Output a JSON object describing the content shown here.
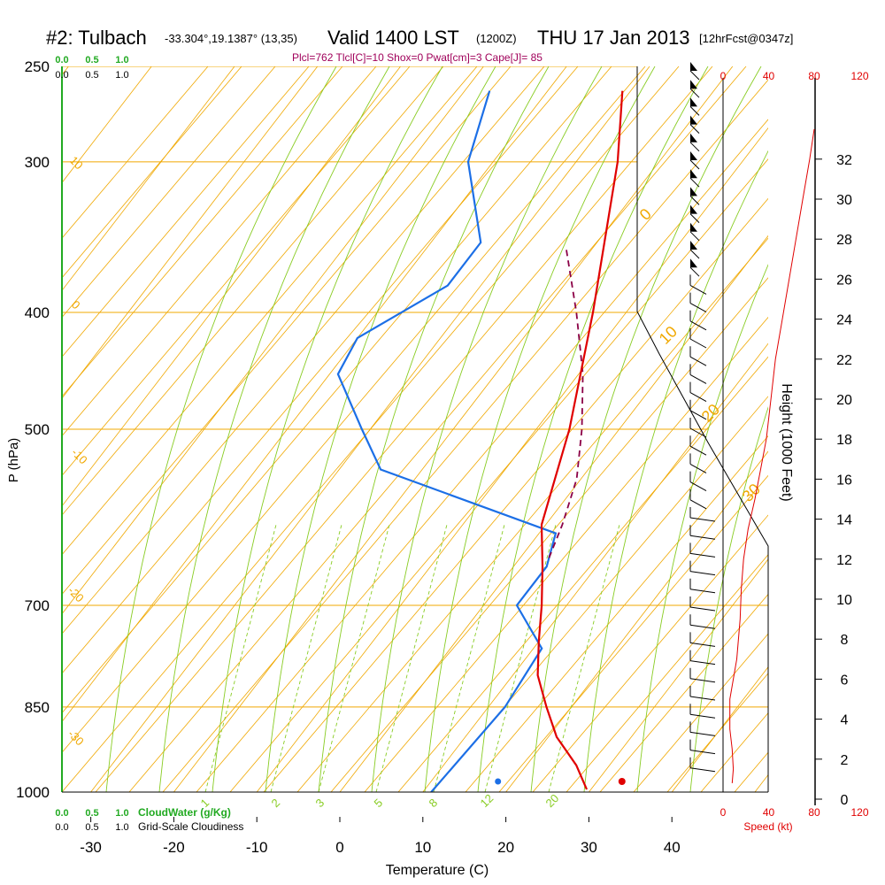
{
  "header": {
    "station": "#2: Tulbach",
    "coords": "-33.304°,19.1387° (13,35)",
    "valid": "Valid 1400 LST",
    "zulu": "(1200Z)",
    "date": "THU 17 Jan 2013",
    "forecast": "[12hrFcst@0347z]",
    "indices": "Plcl=762 Tlcl[C]=10 Shox=0 Pwat[cm]=3 Cape[J]= 85"
  },
  "chart_data": {
    "type": "skew-t",
    "xlabel": "Temperature (C)",
    "ylabel": "P (hPa)",
    "right_axis_label": "Height (1000 Feet)",
    "speed_label": "Speed (kt)",
    "temperature_ticks": [
      -30,
      -20,
      -10,
      0,
      10,
      20,
      30,
      40
    ],
    "pressure_ticks": [
      250,
      300,
      400,
      500,
      700,
      850,
      1000
    ],
    "height_ticks": [
      0,
      2,
      4,
      6,
      8,
      10,
      12,
      14,
      16,
      18,
      20,
      22,
      24,
      26,
      28,
      30,
      32
    ],
    "speed_ticks": [
      0,
      40,
      80,
      120
    ],
    "cloudwater_ticks": [
      "0.0",
      "0.5",
      "1.0"
    ],
    "cloudwater_label": "CloudWater (g/Kg)",
    "cloudiness_ticks": [
      "0.0",
      "0.5",
      "1.0"
    ],
    "cloudiness_label": "Grid-Scale Cloudiness",
    "dry_adiabat_labels": [
      "10",
      "0",
      "-10",
      "-20",
      "-30"
    ],
    "moist_adiabat_labels": [
      "0",
      "10",
      "20",
      "30"
    ],
    "mixing_ratio_labels": [
      "1",
      "2",
      "3",
      "5",
      "8",
      "12",
      "20"
    ],
    "temperature_profile": [
      {
        "p": 262,
        "t": -31
      },
      {
        "p": 300,
        "t": -25
      },
      {
        "p": 400,
        "t": -14
      },
      {
        "p": 500,
        "t": -6
      },
      {
        "p": 600,
        "t": -0.5
      },
      {
        "p": 650,
        "t": 3.5
      },
      {
        "p": 700,
        "t": 7
      },
      {
        "p": 750,
        "t": 10
      },
      {
        "p": 800,
        "t": 13
      },
      {
        "p": 850,
        "t": 17
      },
      {
        "p": 900,
        "t": 21
      },
      {
        "p": 950,
        "t": 26
      },
      {
        "p": 995,
        "t": 29.5
      }
    ],
    "dewpoint_profile": [
      {
        "p": 262,
        "t": -47
      },
      {
        "p": 300,
        "t": -43
      },
      {
        "p": 350,
        "t": -34
      },
      {
        "p": 380,
        "t": -34
      },
      {
        "p": 420,
        "t": -40
      },
      {
        "p": 450,
        "t": -39
      },
      {
        "p": 500,
        "t": -31
      },
      {
        "p": 540,
        "t": -25
      },
      {
        "p": 610,
        "t": 2
      },
      {
        "p": 650,
        "t": 4
      },
      {
        "p": 700,
        "t": 4
      },
      {
        "p": 760,
        "t": 11
      },
      {
        "p": 850,
        "t": 12
      },
      {
        "p": 1000,
        "t": 11
      }
    ],
    "parcel_profile": [
      {
        "p": 355,
        "t": -23
      },
      {
        "p": 400,
        "t": -16
      },
      {
        "p": 450,
        "t": -9.5
      },
      {
        "p": 500,
        "t": -4.5
      },
      {
        "p": 550,
        "t": -0.5
      },
      {
        "p": 600,
        "t": 2
      },
      {
        "p": 640,
        "t": 3.5
      }
    ],
    "surface_temperature": 31,
    "surface_dewpoint": 15,
    "wind_speed_profile": [
      {
        "h": 0.8,
        "kt": 8
      },
      {
        "h": 1.5,
        "kt": 9
      },
      {
        "h": 2.5,
        "kt": 8
      },
      {
        "h": 3.5,
        "kt": 6
      },
      {
        "h": 5,
        "kt": 6
      },
      {
        "h": 7,
        "kt": 12
      },
      {
        "h": 9,
        "kt": 15
      },
      {
        "h": 10.5,
        "kt": 16
      },
      {
        "h": 12,
        "kt": 18
      },
      {
        "h": 13.5,
        "kt": 22
      },
      {
        "h": 15,
        "kt": 28
      },
      {
        "h": 16.5,
        "kt": 33
      },
      {
        "h": 18,
        "kt": 38
      },
      {
        "h": 20,
        "kt": 42
      },
      {
        "h": 22,
        "kt": 46
      },
      {
        "h": 24,
        "kt": 52
      },
      {
        "h": 26,
        "kt": 58
      },
      {
        "h": 28,
        "kt": 64
      },
      {
        "h": 30,
        "kt": 70
      },
      {
        "h": 32,
        "kt": 76
      },
      {
        "h": 33.5,
        "kt": 80
      }
    ]
  }
}
